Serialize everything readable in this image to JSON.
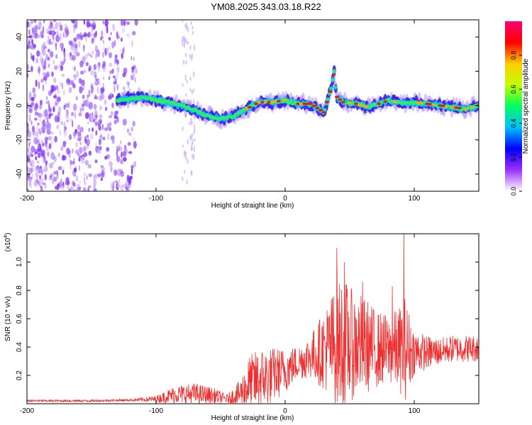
{
  "title": "YM08.2025.343.03.18.R22",
  "chart_data": [
    {
      "type": "heatmap",
      "xlabel": "Height of straight line (km)",
      "ylabel": "Frequency (Hz)",
      "xlim": [
        -200,
        150
      ],
      "ylim": [
        -50,
        50
      ],
      "x_ticks": [
        "-200",
        "-100",
        "0",
        "100"
      ],
      "x_tick_values": [
        -200,
        -100,
        0,
        100
      ],
      "y_ticks": [
        "40",
        "20",
        "0",
        "-20",
        "-40"
      ],
      "y_tick_values": [
        40,
        20,
        0,
        -20,
        -40
      ],
      "colorbar_label": "Normalized spectral amplitude",
      "colorbar_ticks": [
        "0.0",
        "0.2",
        "0.4",
        "0.6",
        "0.8"
      ],
      "colorbar_values": [
        0,
        0.2,
        0.4,
        0.6,
        0.8
      ],
      "colorbar_range": [
        0,
        1
      ],
      "colorbar_colors": [
        "#ffffff",
        "#9b30ff",
        "#0000ff",
        "#00c0ff",
        "#00ff60",
        "#c0ff00",
        "#ffcc00",
        "#ff0000",
        "#ff0070"
      ],
      "ridge": {
        "height_km": [
          -130,
          -120,
          -110,
          -100,
          -90,
          -80,
          -70,
          -60,
          -50,
          -40,
          -30,
          -20,
          -10,
          0,
          10,
          20,
          30,
          35,
          38,
          40,
          45,
          55,
          65,
          80,
          90,
          100,
          110,
          120,
          130,
          140,
          150
        ],
        "frequency_hz": [
          3,
          4,
          5,
          3,
          2,
          0,
          -3,
          -6,
          -8,
          -6,
          -2,
          2,
          2,
          3,
          1,
          1,
          -4,
          8,
          20,
          5,
          2,
          1,
          -1,
          3,
          1,
          2,
          1,
          0,
          -1,
          -2,
          0
        ]
      },
      "noise_region_km": [
        -200,
        -115
      ]
    },
    {
      "type": "line",
      "xlabel": "Height of straight line (km)",
      "ylabel": "SNR (10 * v/v)",
      "scale_label": "(x10",
      "scale_exponent": "4",
      "scale_suffix": ")",
      "xlim": [
        -200,
        150
      ],
      "ylim": [
        0,
        1.2
      ],
      "x_ticks": [
        "-200",
        "-100",
        "0",
        "100"
      ],
      "x_tick_values": [
        -200,
        -100,
        0,
        100
      ],
      "y_ticks": [
        "1.0",
        "0.8",
        "0.6",
        "0.4",
        "0.2"
      ],
      "y_tick_values": [
        1.0,
        0.8,
        0.6,
        0.4,
        0.2
      ],
      "color": "#ee3030",
      "envelope": {
        "height_km": [
          -200,
          -150,
          -120,
          -100,
          -85,
          -70,
          -55,
          -45,
          -35,
          -28,
          -20,
          -10,
          0,
          10,
          20,
          30,
          40,
          45,
          50,
          60,
          70,
          80,
          90,
          92,
          100,
          110,
          120,
          130,
          140,
          150
        ],
        "baseline": [
          0.02,
          0.02,
          0.025,
          0.03,
          0.06,
          0.06,
          0.05,
          0.03,
          0.06,
          0.12,
          0.15,
          0.18,
          0.22,
          0.28,
          0.32,
          0.35,
          0.38,
          0.38,
          0.38,
          0.38,
          0.36,
          0.36,
          0.35,
          0.35,
          0.35,
          0.35,
          0.36,
          0.38,
          0.38,
          0.38
        ],
        "amplitude": [
          0.01,
          0.01,
          0.01,
          0.03,
          0.08,
          0.1,
          0.07,
          0.04,
          0.12,
          0.25,
          0.28,
          0.25,
          0.2,
          0.15,
          0.2,
          0.35,
          0.55,
          0.6,
          0.5,
          0.45,
          0.35,
          0.3,
          0.4,
          0.5,
          0.2,
          0.15,
          0.12,
          0.12,
          0.12,
          0.12
        ]
      },
      "peaks": [
        {
          "x": 40,
          "y": 1.1
        },
        {
          "x": 46,
          "y": 1.0
        },
        {
          "x": 92,
          "y": 1.2
        },
        {
          "x": 60,
          "y": 0.86
        },
        {
          "x": 83,
          "y": 0.83
        }
      ]
    }
  ]
}
